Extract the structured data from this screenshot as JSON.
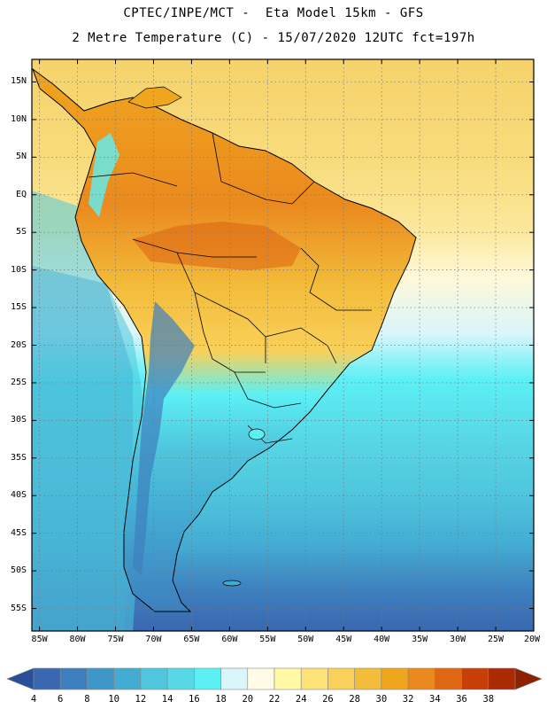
{
  "header": {
    "line1": "CPTEC/INPE/MCT -  Eta Model 15km - GFS",
    "line2": "2 Metre Temperature (C) - 15/07/2020 12UTC fct=197h"
  },
  "map": {
    "lat_range": [
      -58,
      18
    ],
    "lon_range": [
      -86,
      -20
    ],
    "lat_labels": [
      "15N",
      "10N",
      "5N",
      "EQ",
      "5S",
      "10S",
      "15S",
      "20S",
      "25S",
      "30S",
      "35S",
      "40S",
      "45S",
      "50S",
      "55S"
    ],
    "lat_values": [
      15,
      10,
      5,
      0,
      -5,
      -10,
      -15,
      -20,
      -25,
      -30,
      -35,
      -40,
      -45,
      -50,
      -55
    ],
    "lon_labels": [
      "85W",
      "80W",
      "75W",
      "70W",
      "65W",
      "60W",
      "55W",
      "50W",
      "45W",
      "40W",
      "35W",
      "30W",
      "25W",
      "20W"
    ],
    "lon_values": [
      -85,
      -80,
      -75,
      -70,
      -65,
      -60,
      -55,
      -50,
      -45,
      -40,
      -35,
      -30,
      -25,
      -20
    ]
  },
  "colorbar": {
    "labels": [
      "4",
      "6",
      "8",
      "10",
      "12",
      "14",
      "16",
      "18",
      "20",
      "22",
      "24",
      "26",
      "28",
      "30",
      "32",
      "34",
      "36",
      "38"
    ],
    "colors": [
      "#3a68b0",
      "#3d7fbe",
      "#3f97c9",
      "#44acd3",
      "#4fc6dd",
      "#58d8e6",
      "#5cf0f5",
      "#d9f6fb",
      "#fffbe6",
      "#fff9a6",
      "#fde27a",
      "#f9d05a",
      "#f3bc3a",
      "#f0a51e",
      "#ea8a1e",
      "#de6714",
      "#c73e06",
      "#aa2a02"
    ],
    "min_color": "#2a4f9a",
    "max_color": "#8e2200"
  }
}
